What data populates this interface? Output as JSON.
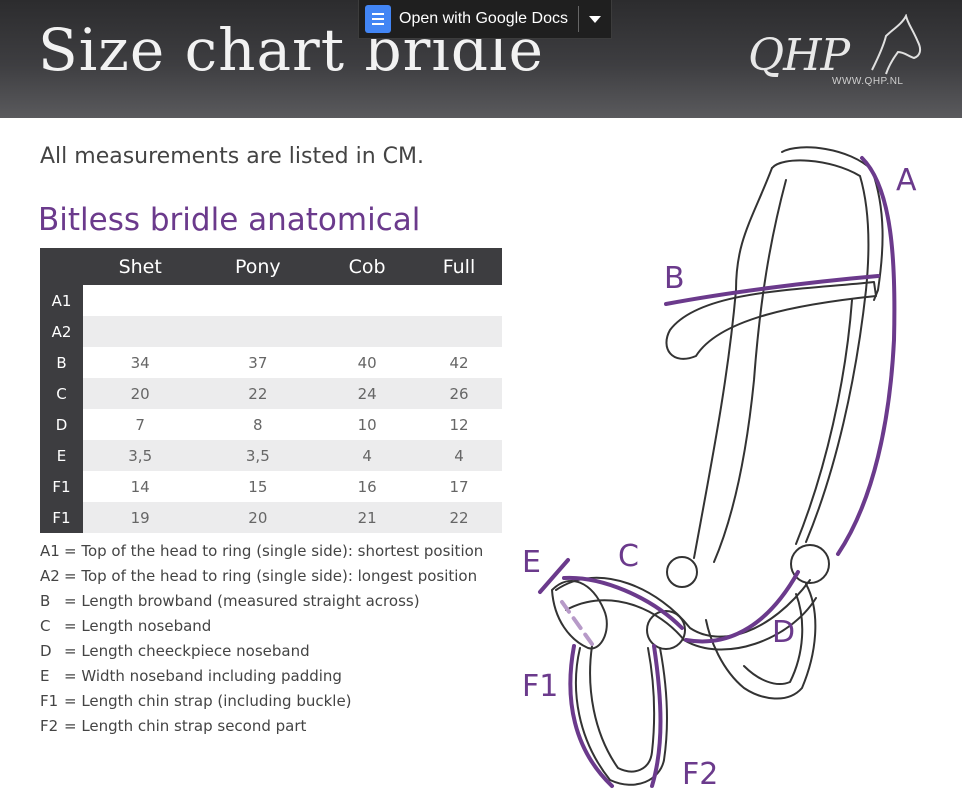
{
  "header": {
    "title": "Size chart bridle",
    "logo": {
      "text": "QHP",
      "url": "WWW.QHP.NL"
    }
  },
  "toolbar": {
    "open_with_label": "Open with Google Docs"
  },
  "intro": "All measurements are listed in CM.",
  "section_title": "Bitless bridle anatomical",
  "table": {
    "columns": [
      "Shet",
      "Pony",
      "Cob",
      "Full"
    ],
    "rows": [
      {
        "label": "A1",
        "values": [
          "",
          "",
          "",
          ""
        ]
      },
      {
        "label": "A2",
        "values": [
          "",
          "",
          "",
          ""
        ]
      },
      {
        "label": "B",
        "values": [
          "34",
          "37",
          "40",
          "42"
        ]
      },
      {
        "label": "C",
        "values": [
          "20",
          "22",
          "24",
          "26"
        ]
      },
      {
        "label": "D",
        "values": [
          "7",
          "8",
          "10",
          "12"
        ]
      },
      {
        "label": "E",
        "values": [
          "3,5",
          "3,5",
          "4",
          "4"
        ]
      },
      {
        "label": "F1",
        "values": [
          "14",
          "15",
          "16",
          "17"
        ]
      },
      {
        "label": "F1",
        "values": [
          "19",
          "20",
          "21",
          "22"
        ]
      }
    ]
  },
  "legend": [
    {
      "key": "A1",
      "text": "= Top of the head to ring (single side): shortest position"
    },
    {
      "key": "A2",
      "text": "= Top of the head to ring (single side): longest position"
    },
    {
      "key": "B",
      "text": "= Length browband (measured straight across)"
    },
    {
      "key": "C",
      "text": "= Length noseband"
    },
    {
      "key": "D",
      "text": "= Length cheeckpiece noseband"
    },
    {
      "key": "E",
      "text": "= Width noseband including padding"
    },
    {
      "key": "F1",
      "text": "= Length chin strap (including buckle)"
    },
    {
      "key": "F2",
      "text": "= Length chin strap second part"
    }
  ],
  "diagram_labels": {
    "a": "A",
    "b": "B",
    "c": "C",
    "d": "D",
    "e": "E",
    "f1": "F1",
    "f2": "F2"
  },
  "colors": {
    "accent": "#6b3a8c",
    "header_dark": "#3d3d40",
    "row_alt": "#ececed"
  }
}
